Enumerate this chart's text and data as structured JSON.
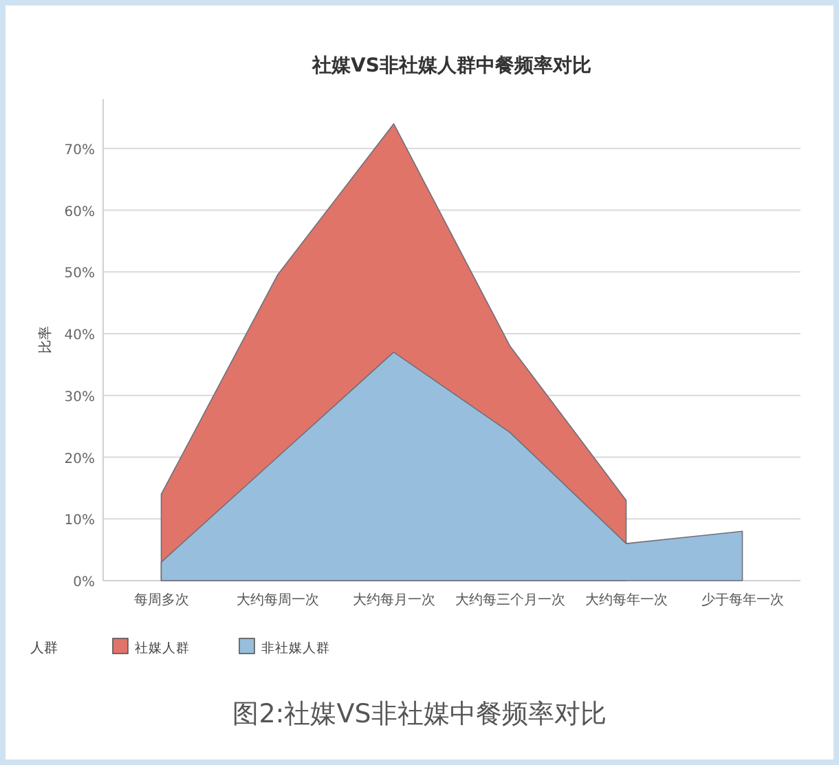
{
  "chart_data": {
    "type": "area",
    "title": "社媒VS非社媒人群中餐频率对比",
    "ylabel": "比率",
    "legend_title": "人群",
    "categories": [
      "每周多次",
      "大约每周一次",
      "大约每月一次",
      "大约每三个月一次",
      "大约每年一次",
      "少于每年一次"
    ],
    "series": [
      {
        "name": "社媒人群",
        "color": "#e07468",
        "values": [
          14,
          49.5,
          74,
          38,
          13,
          null
        ]
      },
      {
        "name": "非社媒人群",
        "color": "#97bedc",
        "values": [
          3,
          20,
          37,
          24,
          6,
          8
        ]
      }
    ],
    "ylim": [
      0,
      78
    ],
    "yticks": [
      {
        "value": 0,
        "label": "0%"
      },
      {
        "value": 10,
        "label": "10%"
      },
      {
        "value": 20,
        "label": "20%"
      },
      {
        "value": 30,
        "label": "30%"
      },
      {
        "value": 40,
        "label": "40%"
      },
      {
        "value": 50,
        "label": "50%"
      },
      {
        "value": 60,
        "label": "60%"
      },
      {
        "value": 70,
        "label": "70%"
      }
    ],
    "grid": "y",
    "legend": "bottom",
    "annotations": [
      "图2:社媒VS非社媒中餐频率对比"
    ]
  }
}
